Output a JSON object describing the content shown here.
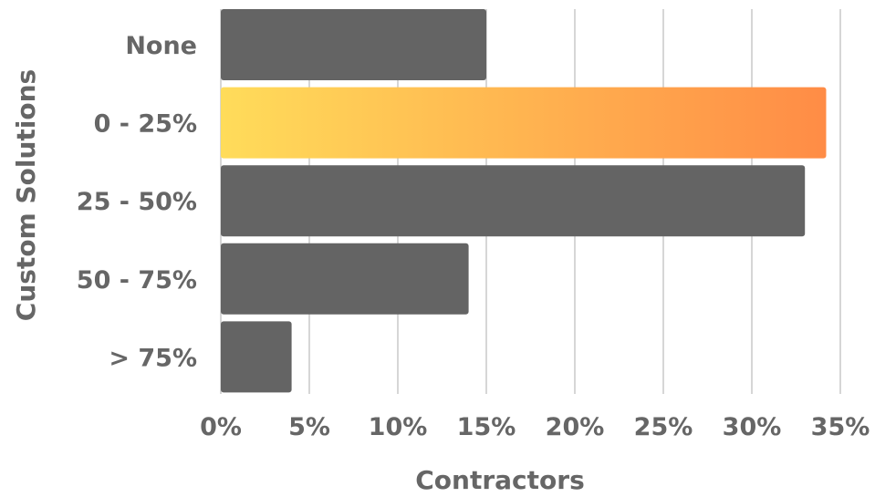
{
  "chart_data": {
    "type": "bar",
    "orientation": "horizontal",
    "categories": [
      "None",
      "0 - 25%",
      "25 - 50%",
      "50 - 75%",
      "> 75%"
    ],
    "values": [
      15,
      34.2,
      33,
      14,
      4
    ],
    "value_unit": "%",
    "highlight_index": 1,
    "xlabel": "Contractors",
    "ylabel": "Custom Solutions",
    "xlim": [
      0,
      35
    ],
    "x_ticks": [
      "0%",
      "5%",
      "10%",
      "15%",
      "20%",
      "25%",
      "30%",
      "35%"
    ],
    "grid": "vertical",
    "legend": "none",
    "colors": {
      "bar": "#646464",
      "highlight_gradient_start": "#ffdc5a",
      "highlight_gradient_end": "#ff8c46",
      "grid": "#d6d6d6",
      "text": "#666666"
    }
  }
}
